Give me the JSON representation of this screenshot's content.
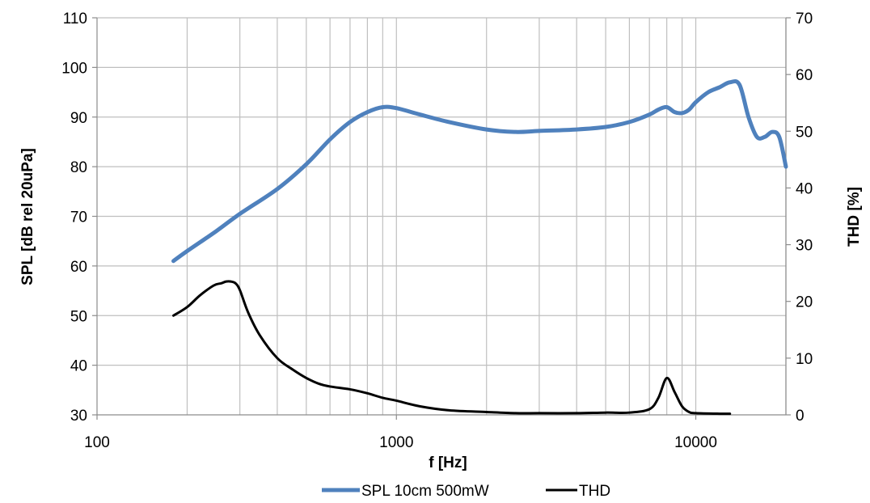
{
  "chart_data": {
    "type": "line",
    "xlabel": "f [Hz]",
    "ylabel_left": "SPL [dB rel 20uPa]",
    "ylabel_right": "THD [%]",
    "x_scale": "log",
    "xlim": [
      100,
      20000
    ],
    "ylim_left": [
      30,
      110
    ],
    "ylim_right": [
      0,
      70
    ],
    "x_ticks": [
      100,
      1000,
      10000
    ],
    "x_tick_labels": [
      "100",
      "1000",
      "10000"
    ],
    "y_left_ticks": [
      30,
      40,
      50,
      60,
      70,
      80,
      90,
      100,
      110
    ],
    "y_left_tick_labels": [
      "30",
      "40",
      "50",
      "60",
      "70",
      "80",
      "90",
      "100",
      "110"
    ],
    "y_right_ticks": [
      0,
      10,
      20,
      30,
      40,
      50,
      60,
      70
    ],
    "y_right_tick_labels": [
      "0",
      "10",
      "20",
      "30",
      "40",
      "50",
      "60",
      "70"
    ],
    "grid": true,
    "legend_position": "bottom",
    "series": [
      {
        "name": "SPL 10cm 500mW",
        "axis": "left",
        "color": "#4f81bd",
        "x": [
          180,
          200,
          250,
          300,
          400,
          500,
          600,
          700,
          800,
          900,
          1000,
          1200,
          1500,
          2000,
          2500,
          3000,
          4000,
          5000,
          6000,
          7000,
          7500,
          8000,
          8500,
          9000,
          9500,
          10000,
          11000,
          12000,
          13000,
          14000,
          15000,
          16000,
          17000,
          18000,
          19000,
          20000
        ],
        "y": [
          61,
          63,
          67,
          70.5,
          75.5,
          80.5,
          85.5,
          89,
          91,
          92,
          91.8,
          90.5,
          89,
          87.5,
          87,
          87.2,
          87.5,
          88,
          89,
          90.5,
          91.5,
          92,
          91,
          90.8,
          91.5,
          93,
          95,
          96,
          97,
          96.5,
          90,
          86,
          86,
          87,
          86,
          80
        ]
      },
      {
        "name": "THD",
        "axis": "right",
        "color": "#000000",
        "x": [
          180,
          200,
          220,
          240,
          250,
          260,
          270,
          280,
          290,
          300,
          320,
          350,
          400,
          450,
          500,
          550,
          600,
          700,
          800,
          900,
          1000,
          1200,
          1500,
          2000,
          2500,
          3000,
          4000,
          5000,
          6000,
          7000,
          7500,
          8000,
          8500,
          9000,
          9500,
          10000,
          12000,
          13000
        ],
        "y": [
          17.5,
          19,
          21,
          22.5,
          23,
          23.2,
          23.5,
          23.5,
          23.2,
          22,
          18,
          14,
          10,
          8,
          6.5,
          5.5,
          5,
          4.5,
          3.8,
          3,
          2.5,
          1.5,
          0.8,
          0.5,
          0.3,
          0.3,
          0.3,
          0.4,
          0.4,
          1,
          3,
          6.5,
          4,
          1.5,
          0.5,
          0.3,
          0.2,
          0.2
        ]
      }
    ]
  }
}
